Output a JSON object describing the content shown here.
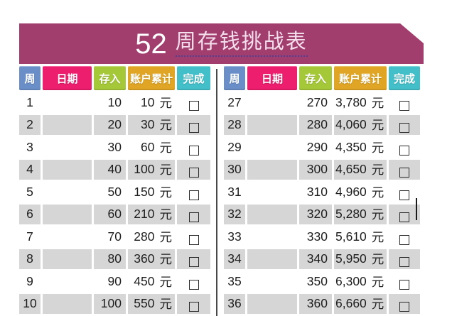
{
  "title": {
    "number": "52",
    "text": "周存钱挑战表"
  },
  "banner_color": "#a23e6e",
  "unit": "元",
  "columns": [
    {
      "key": "week",
      "label": "周",
      "color": "#6a8fc8"
    },
    {
      "key": "date",
      "label": "日期",
      "color": "#ec1e6d"
    },
    {
      "key": "deposit",
      "label": "存入",
      "color": "#a5c838"
    },
    {
      "key": "total",
      "label": "账户累计",
      "color": "#e0a524"
    },
    {
      "key": "done",
      "label": "完成",
      "color": "#43bfc9"
    }
  ],
  "row_colors": {
    "alt_row_bg": "#d6d6d6",
    "text": "#1e1e1e"
  },
  "tables": [
    {
      "name": "weeks-1-10",
      "rows": [
        {
          "week": "1",
          "date": "",
          "deposit": "10",
          "total": "10",
          "done": false
        },
        {
          "week": "2",
          "date": "",
          "deposit": "20",
          "total": "30",
          "done": false
        },
        {
          "week": "3",
          "date": "",
          "deposit": "30",
          "total": "60",
          "done": false
        },
        {
          "week": "4",
          "date": "",
          "deposit": "40",
          "total": "100",
          "done": false
        },
        {
          "week": "5",
          "date": "",
          "deposit": "50",
          "total": "150",
          "done": false
        },
        {
          "week": "6",
          "date": "",
          "deposit": "60",
          "total": "210",
          "done": false
        },
        {
          "week": "7",
          "date": "",
          "deposit": "70",
          "total": "280",
          "done": false
        },
        {
          "week": "8",
          "date": "",
          "deposit": "80",
          "total": "360",
          "done": false
        },
        {
          "week": "9",
          "date": "",
          "deposit": "90",
          "total": "450",
          "done": false
        },
        {
          "week": "10",
          "date": "",
          "deposit": "100",
          "total": "550",
          "done": false
        }
      ]
    },
    {
      "name": "weeks-27-36",
      "rows": [
        {
          "week": "27",
          "date": "",
          "deposit": "270",
          "total": "3,780",
          "done": false
        },
        {
          "week": "28",
          "date": "",
          "deposit": "280",
          "total": "4,060",
          "done": false
        },
        {
          "week": "29",
          "date": "",
          "deposit": "290",
          "total": "4,350",
          "done": false
        },
        {
          "week": "30",
          "date": "",
          "deposit": "300",
          "total": "4,650",
          "done": false
        },
        {
          "week": "31",
          "date": "",
          "deposit": "310",
          "total": "4,960",
          "done": false
        },
        {
          "week": "32",
          "date": "",
          "deposit": "320",
          "total": "5,280",
          "done": false
        },
        {
          "week": "33",
          "date": "",
          "deposit": "330",
          "total": "5,610",
          "done": false
        },
        {
          "week": "34",
          "date": "",
          "deposit": "340",
          "total": "5,950",
          "done": false
        },
        {
          "week": "35",
          "date": "",
          "deposit": "350",
          "total": "6,300",
          "done": false
        },
        {
          "week": "36",
          "date": "",
          "deposit": "360",
          "total": "6,660",
          "done": false
        }
      ]
    }
  ]
}
